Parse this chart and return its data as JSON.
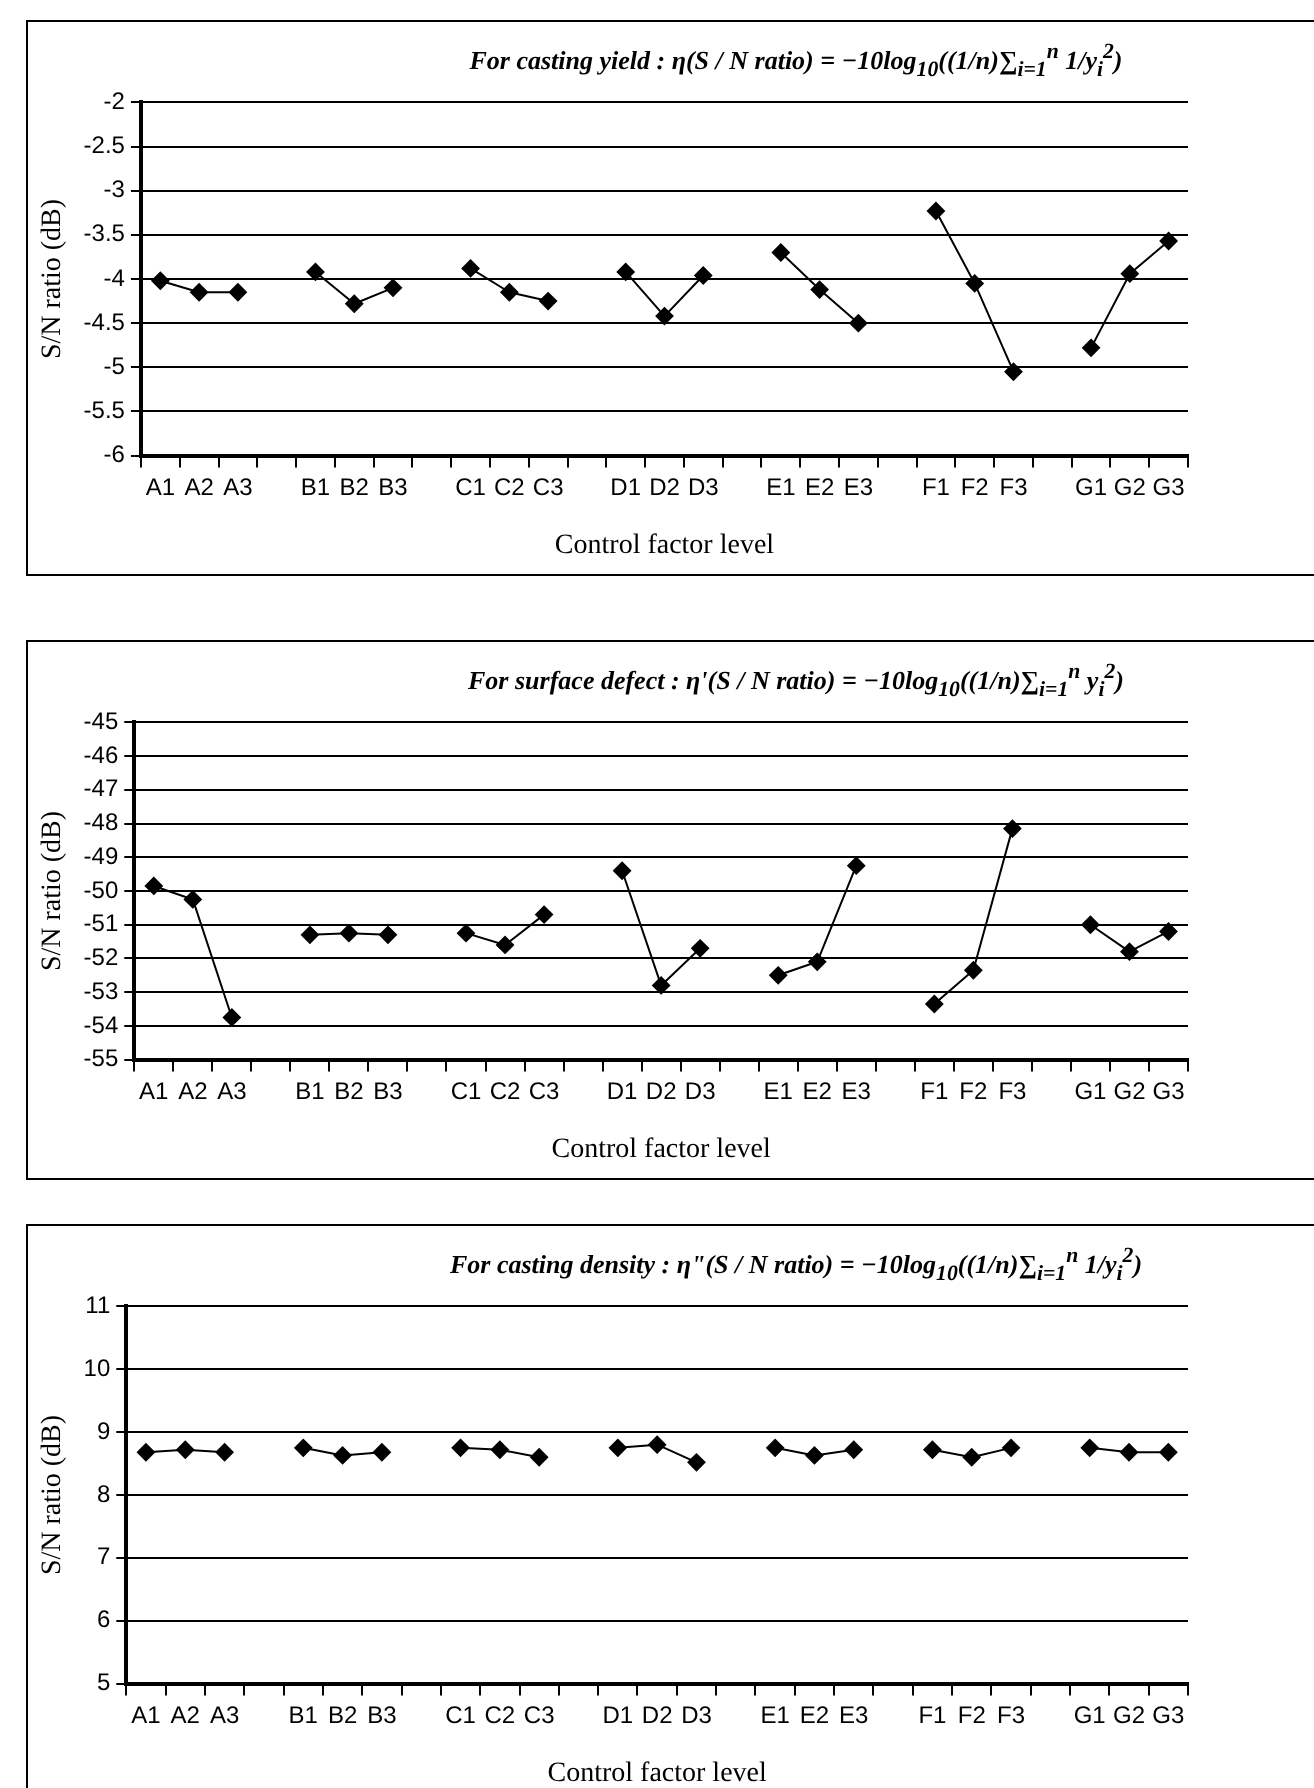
{
  "chart_data": [
    {
      "type": "line",
      "title": "For casting yield : η(S / N ratio) = −10log$_{10}$((1/n)∑$_{i=1}$$^{n}$ 1/y$_{i}$$^{2}$)",
      "xlabel": "Control factor level",
      "ylabel": "S/N ratio (dB)",
      "categories": [
        "A1",
        "A2",
        "A3",
        null,
        "B1",
        "B2",
        "B3",
        null,
        "C1",
        "C2",
        "C3",
        null,
        "D1",
        "D2",
        "D3",
        null,
        "E1",
        "E2",
        "E3",
        null,
        "F1",
        "F2",
        "F3",
        null,
        "G1",
        "G2",
        "G3"
      ],
      "series": [
        {
          "color": "#000000",
          "values": [
            -4.02,
            -4.15,
            -4.15,
            null,
            -3.92,
            -4.28,
            -4.1,
            null,
            -3.88,
            -4.15,
            -4.25,
            null,
            -3.92,
            -4.42,
            -3.96,
            null,
            -3.7,
            -4.12,
            -4.5,
            null,
            -3.23,
            -4.05,
            -5.05,
            null,
            -4.78,
            -3.94,
            -3.57
          ]
        }
      ],
      "ylim": [
        -6,
        -2
      ],
      "yticks": [
        -6,
        -5.5,
        -5,
        -4.5,
        -4,
        -3.5,
        -3,
        -2.5,
        -2
      ],
      "grid": "y",
      "legend": false,
      "marker": "diamond",
      "line_style": "solid"
    },
    {
      "type": "line",
      "title": "For surface defect : η'(S / N ratio) = −10log$_{10}$((1/n)∑$_{i=1}$$^{n}$ y$_{i}$$^{2}$)",
      "xlabel": "Control factor level",
      "ylabel": "S/N ratio (dB)",
      "categories": [
        "A1",
        "A2",
        "A3",
        null,
        "B1",
        "B2",
        "B3",
        null,
        "C1",
        "C2",
        "C3",
        null,
        "D1",
        "D2",
        "D3",
        null,
        "E1",
        "E2",
        "E3",
        null,
        "F1",
        "F2",
        "F3",
        null,
        "G1",
        "G2",
        "G3"
      ],
      "series": [
        {
          "color": "#000000",
          "values": [
            -49.85,
            -50.25,
            -53.75,
            null,
            -51.3,
            -51.25,
            -51.3,
            null,
            -51.25,
            -51.6,
            -50.7,
            null,
            -49.4,
            -52.8,
            -51.7,
            null,
            -52.5,
            -52.1,
            -49.25,
            null,
            -53.35,
            -52.35,
            -48.15,
            null,
            -51,
            -51.8,
            -51.2
          ]
        }
      ],
      "ylim": [
        -55,
        -45
      ],
      "yticks": [
        -55,
        -54,
        -53,
        -52,
        -51,
        -50,
        -49,
        -48,
        -47,
        -46,
        -45
      ],
      "grid": "y",
      "legend": false,
      "marker": "diamond",
      "line_style": "solid"
    },
    {
      "type": "line",
      "title": "For casting density : η\"(S / N ratio) = −10log$_{10}$((1/n)∑$_{i=1}$$^{n}$ 1/y$_{i}$$^{2}$)",
      "xlabel": "Control factor level",
      "ylabel": "S/N ratio (dB)",
      "categories": [
        "A1",
        "A2",
        "A3",
        null,
        "B1",
        "B2",
        "B3",
        null,
        "C1",
        "C2",
        "C3",
        null,
        "D1",
        "D2",
        "D3",
        null,
        "E1",
        "E2",
        "E3",
        null,
        "F1",
        "F2",
        "F3",
        null,
        "G1",
        "G2",
        "G3"
      ],
      "series": [
        {
          "color": "#000000",
          "values": [
            8.68,
            8.72,
            8.68,
            null,
            8.75,
            8.63,
            8.68,
            null,
            8.75,
            8.72,
            8.6,
            null,
            8.75,
            8.8,
            8.52,
            null,
            8.75,
            8.63,
            8.72,
            null,
            8.72,
            8.6,
            8.75,
            null,
            8.75,
            8.68,
            8.68
          ]
        }
      ],
      "ylim": [
        5,
        11
      ],
      "yticks": [
        5,
        6,
        7,
        8,
        9,
        10,
        11
      ],
      "grid": "y",
      "legend": false,
      "marker": "diamond",
      "line_style": "solid"
    }
  ]
}
